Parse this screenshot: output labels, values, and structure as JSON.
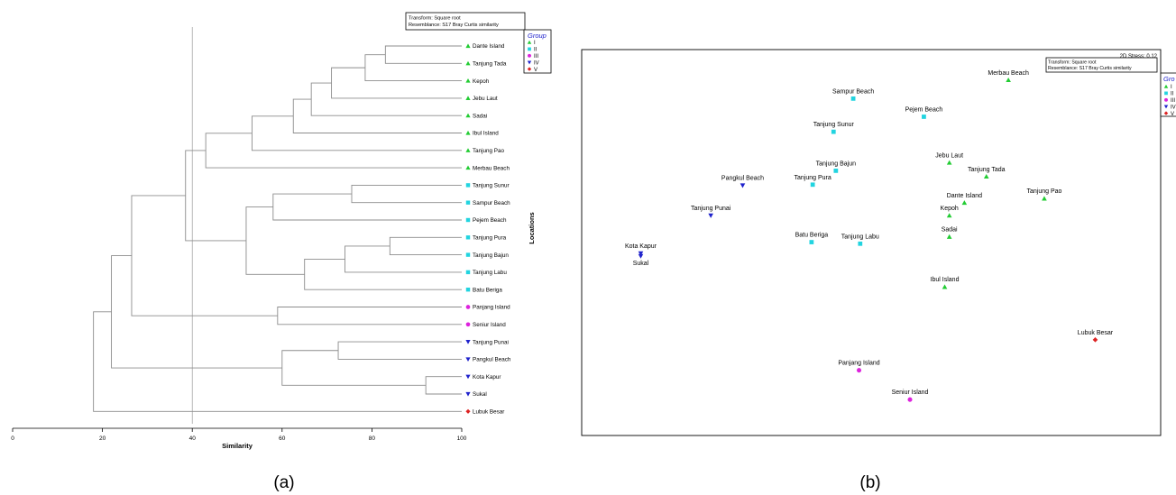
{
  "group_colors": {
    "I": "#22cc33",
    "II": "#22d4e0",
    "III": "#dd22dd",
    "IV": "#1f22cc",
    "V": "#dd2222"
  },
  "group_shapes": {
    "I": "triangle-up-icon",
    "II": "square-icon",
    "III": "circle-icon",
    "IV": "triangle-down-icon",
    "V": "diamond-icon"
  },
  "panel_a_label": "(a)",
  "panel_b_label": "(b)",
  "chart_data": [
    {
      "type": "dendrogram",
      "panel": "a",
      "transform_text": "Transform: Square root",
      "resemblance_text": "Resemblance: S17 Bray Curtis similarity",
      "xlabel": "Similarity",
      "ylabel": "Locations",
      "xlim": [
        0,
        100
      ],
      "x_ticks": [
        0,
        20,
        40,
        60,
        80,
        100
      ],
      "reference_line": 40,
      "legend": {
        "title": "Group",
        "placement": "top-right",
        "entries": [
          {
            "label": "I",
            "group": "I"
          },
          {
            "label": "II",
            "group": "II"
          },
          {
            "label": "III",
            "group": "III"
          },
          {
            "label": "IV",
            "group": "IV"
          },
          {
            "label": "V",
            "group": "V"
          }
        ]
      },
      "leaves": [
        {
          "label": "Dante Island",
          "group": "I"
        },
        {
          "label": "Tanjung Tada",
          "group": "I"
        },
        {
          "label": "Kepoh",
          "group": "I"
        },
        {
          "label": "Jebu Laut",
          "group": "I"
        },
        {
          "label": "Sadai",
          "group": "I"
        },
        {
          "label": "Ibul Island",
          "group": "I"
        },
        {
          "label": "Tanjung Pao",
          "group": "I"
        },
        {
          "label": "Merbau Beach",
          "group": "I"
        },
        {
          "label": "Tanjung Sunur",
          "group": "II"
        },
        {
          "label": "Sampur Beach",
          "group": "II"
        },
        {
          "label": "Pejem Beach",
          "group": "II"
        },
        {
          "label": "Tanjung Pura",
          "group": "II"
        },
        {
          "label": "Tanjung Bajun",
          "group": "II"
        },
        {
          "label": "Tanjung Labu",
          "group": "II"
        },
        {
          "label": "Batu Beriga",
          "group": "II"
        },
        {
          "label": "Panjang Island",
          "group": "III"
        },
        {
          "label": "Seniur Island",
          "group": "III"
        },
        {
          "label": "Tanjung Punai",
          "group": "IV"
        },
        {
          "label": "Pangkul Beach",
          "group": "IV"
        },
        {
          "label": "Kota Kapur",
          "group": "IV"
        },
        {
          "label": "Sukal",
          "group": "IV"
        },
        {
          "label": "Lubuk Besar",
          "group": "V"
        }
      ],
      "merges": [
        {
          "a": "L0",
          "b": "L1",
          "similarity": 83
        },
        {
          "a": "N0",
          "b": "L2",
          "similarity": 78.5
        },
        {
          "a": "N1",
          "b": "L3",
          "similarity": 71
        },
        {
          "a": "N2",
          "b": "L4",
          "similarity": 66.5
        },
        {
          "a": "N3",
          "b": "L5",
          "similarity": 62.5
        },
        {
          "a": "N4",
          "b": "L6",
          "similarity": 53.3
        },
        {
          "a": "N5",
          "b": "L7",
          "similarity": 43
        },
        {
          "a": "L8",
          "b": "L9",
          "similarity": 75.5
        },
        {
          "a": "N7",
          "b": "L10",
          "similarity": 58
        },
        {
          "a": "L11",
          "b": "L12",
          "similarity": 84
        },
        {
          "a": "N9",
          "b": "L13",
          "similarity": 74
        },
        {
          "a": "N10",
          "b": "L14",
          "similarity": 65
        },
        {
          "a": "N8",
          "b": "N11",
          "similarity": 52
        },
        {
          "a": "N6",
          "b": "N12",
          "similarity": 38.5
        },
        {
          "a": "L15",
          "b": "L16",
          "similarity": 59
        },
        {
          "a": "N13",
          "b": "N14",
          "similarity": 26.5
        },
        {
          "a": "L17",
          "b": "L18",
          "similarity": 72.5
        },
        {
          "a": "L19",
          "b": "L20",
          "similarity": 92
        },
        {
          "a": "N16",
          "b": "N17",
          "similarity": 60
        },
        {
          "a": "N15",
          "b": "N18",
          "similarity": 22
        },
        {
          "a": "N19",
          "b": "L21",
          "similarity": 18
        }
      ]
    },
    {
      "type": "scatter",
      "panel": "b",
      "transform_text": "Transform: Square root",
      "resemblance_text": "Resemblance: S17 Bray Curtis similarity",
      "stress_text": "2D Stress: 0.12",
      "xlim": [
        0,
        100
      ],
      "ylim": [
        0,
        100
      ],
      "grid": false,
      "legend": {
        "title": "Gro",
        "placement": "right-top",
        "entries": [
          {
            "label": "I",
            "group": "I"
          },
          {
            "label": "II",
            "group": "II"
          },
          {
            "label": "III",
            "group": "III"
          },
          {
            "label": "IV",
            "group": "IV"
          },
          {
            "label": "V",
            "group": "V"
          }
        ]
      },
      "points": [
        {
          "label": "Merbau Beach",
          "group": "I",
          "x": 73.7,
          "y": 92.1,
          "label_pos": "above"
        },
        {
          "label": "Sampur Beach",
          "group": "II",
          "x": 46.9,
          "y": 87.3,
          "label_pos": "above"
        },
        {
          "label": "Pejem Beach",
          "group": "II",
          "x": 59.1,
          "y": 82.6,
          "label_pos": "above"
        },
        {
          "label": "Tanjung Sunur",
          "group": "II",
          "x": 43.5,
          "y": 78.7,
          "label_pos": "above"
        },
        {
          "label": "Jebu Laut",
          "group": "I",
          "x": 63.5,
          "y": 70.7,
          "label_pos": "above"
        },
        {
          "label": "Tanjung Tada",
          "group": "I",
          "x": 69.9,
          "y": 67.1,
          "label_pos": "above"
        },
        {
          "label": "Tanjung Bajun",
          "group": "II",
          "x": 43.9,
          "y": 68.6,
          "label_pos": "above"
        },
        {
          "label": "Tanjung Pura",
          "group": "II",
          "x": 39.9,
          "y": 65.0,
          "label_pos": "above"
        },
        {
          "label": "Pangkul Beach",
          "group": "IV",
          "x": 27.8,
          "y": 64.8,
          "label_pos": "above"
        },
        {
          "label": "Dante Island",
          "group": "I",
          "x": 66.1,
          "y": 60.3,
          "label_pos": "above"
        },
        {
          "label": "Kepoh",
          "group": "I",
          "x": 63.5,
          "y": 57.0,
          "label_pos": "above"
        },
        {
          "label": "Tanjung Pao",
          "group": "I",
          "x": 79.9,
          "y": 61.4,
          "label_pos": "above"
        },
        {
          "label": "Tanjung Punai",
          "group": "IV",
          "x": 22.3,
          "y": 57.0,
          "label_pos": "above"
        },
        {
          "label": "Batu Beriga",
          "group": "II",
          "x": 39.7,
          "y": 50.1,
          "label_pos": "above"
        },
        {
          "label": "Tanjung Labu",
          "group": "II",
          "x": 48.1,
          "y": 49.7,
          "label_pos": "above"
        },
        {
          "label": "Sadai",
          "group": "I",
          "x": 63.5,
          "y": 51.5,
          "label_pos": "above"
        },
        {
          "label": "Kota Kapur",
          "group": "IV",
          "x": 10.2,
          "y": 47.2,
          "label_pos": "above"
        },
        {
          "label": "Sukal",
          "group": "IV",
          "x": 10.2,
          "y": 46.5,
          "label_pos": "below"
        },
        {
          "label": "Ibul Island",
          "group": "I",
          "x": 62.7,
          "y": 38.5,
          "label_pos": "above"
        },
        {
          "label": "Lubuk Besar",
          "group": "V",
          "x": 88.7,
          "y": 24.8,
          "label_pos": "above"
        },
        {
          "label": "Panjang Island",
          "group": "III",
          "x": 47.9,
          "y": 16.9,
          "label_pos": "above"
        },
        {
          "label": "Seniur Island",
          "group": "III",
          "x": 56.7,
          "y": 9.3,
          "label_pos": "above"
        }
      ]
    }
  ]
}
